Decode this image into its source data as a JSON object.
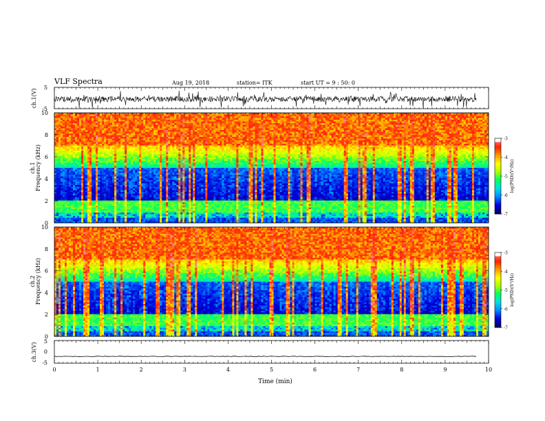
{
  "header": {
    "title": "VLF Spectra",
    "date": "Aug 19, 2018",
    "station": "station= ITK",
    "start": "start UT = 9 : 50: 0"
  },
  "colors": {
    "colormap": [
      "#000066",
      "#0000dd",
      "#0088ff",
      "#00e0e0",
      "#00ff66",
      "#aaff00",
      "#ffff00",
      "#ff9900",
      "#ff2200",
      "#ff8888",
      "#ffffff"
    ],
    "waveform": "#000000",
    "axis": "#000000"
  },
  "chart_data": [
    {
      "type": "line",
      "name": "ch1-waveform",
      "ylabel": "ch.1(V)",
      "ylim": [
        -5,
        5
      ],
      "yticks": [
        "5",
        "-5"
      ],
      "xlim": [
        0,
        10
      ]
    },
    {
      "type": "heatmap",
      "name": "ch1-spectrogram",
      "ylabel": "ch.1\nFrequency (kHz)",
      "ylim": [
        0,
        10
      ],
      "yticks": [
        "0",
        "2",
        "4",
        "6",
        "8",
        "10"
      ],
      "xlim": [
        0,
        10
      ],
      "colorbar": {
        "label": "log(PSD)(V²/Hz)",
        "range": [
          -7,
          -3
        ],
        "ticks": [
          "-3",
          "-4",
          "-5",
          "-6",
          "-7"
        ]
      }
    },
    {
      "type": "heatmap",
      "name": "ch2-spectrogram",
      "ylabel": "ch.2\nFrequency (kHz)",
      "ylim": [
        0,
        10
      ],
      "yticks": [
        "0",
        "2",
        "4",
        "6",
        "8",
        "10"
      ],
      "xlim": [
        0,
        10
      ],
      "colorbar": {
        "label": "log(PSD)(V²/Hz)",
        "range": [
          -7,
          -3
        ],
        "ticks": [
          "-3",
          "-4",
          "-5",
          "-6",
          "-7"
        ]
      }
    },
    {
      "type": "line",
      "name": "ch3-waveform",
      "ylabel": "ch.3(V)",
      "ylim": [
        -5,
        5
      ],
      "yticks": [
        "5",
        "0",
        "-5"
      ],
      "xlim": [
        0,
        10
      ],
      "xlabel": "Time (min)",
      "xticks": [
        "0",
        "1",
        "2",
        "3",
        "4",
        "5",
        "6",
        "7",
        "8",
        "9",
        "10"
      ]
    }
  ]
}
